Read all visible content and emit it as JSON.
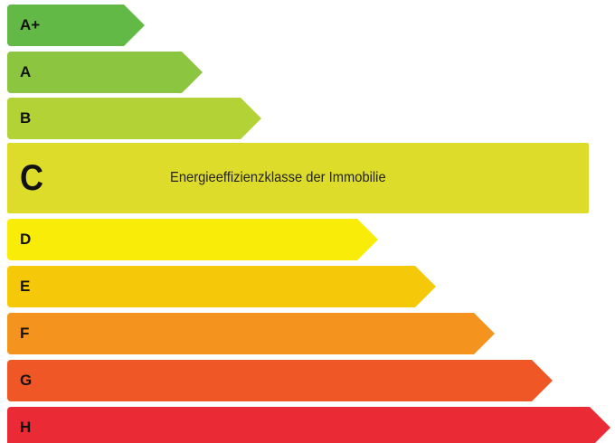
{
  "energy_scale": {
    "classes": [
      {
        "key": "a_plus",
        "label": "A+",
        "color": "#63b946"
      },
      {
        "key": "a",
        "label": "A",
        "color": "#8cc640"
      },
      {
        "key": "b",
        "label": "B",
        "color": "#b2d235"
      },
      {
        "key": "c",
        "label": "C",
        "color": "#dedc2a",
        "active": true,
        "description": "Energieeffizienzklasse der Immobilie"
      },
      {
        "key": "d",
        "label": "D",
        "color": "#f9ec08"
      },
      {
        "key": "e",
        "label": "E",
        "color": "#f5c90a"
      },
      {
        "key": "f",
        "label": "F",
        "color": "#f4931e"
      },
      {
        "key": "g",
        "label": "G",
        "color": "#ef5726"
      },
      {
        "key": "h",
        "label": "H",
        "color": "#ea2a35"
      }
    ]
  }
}
